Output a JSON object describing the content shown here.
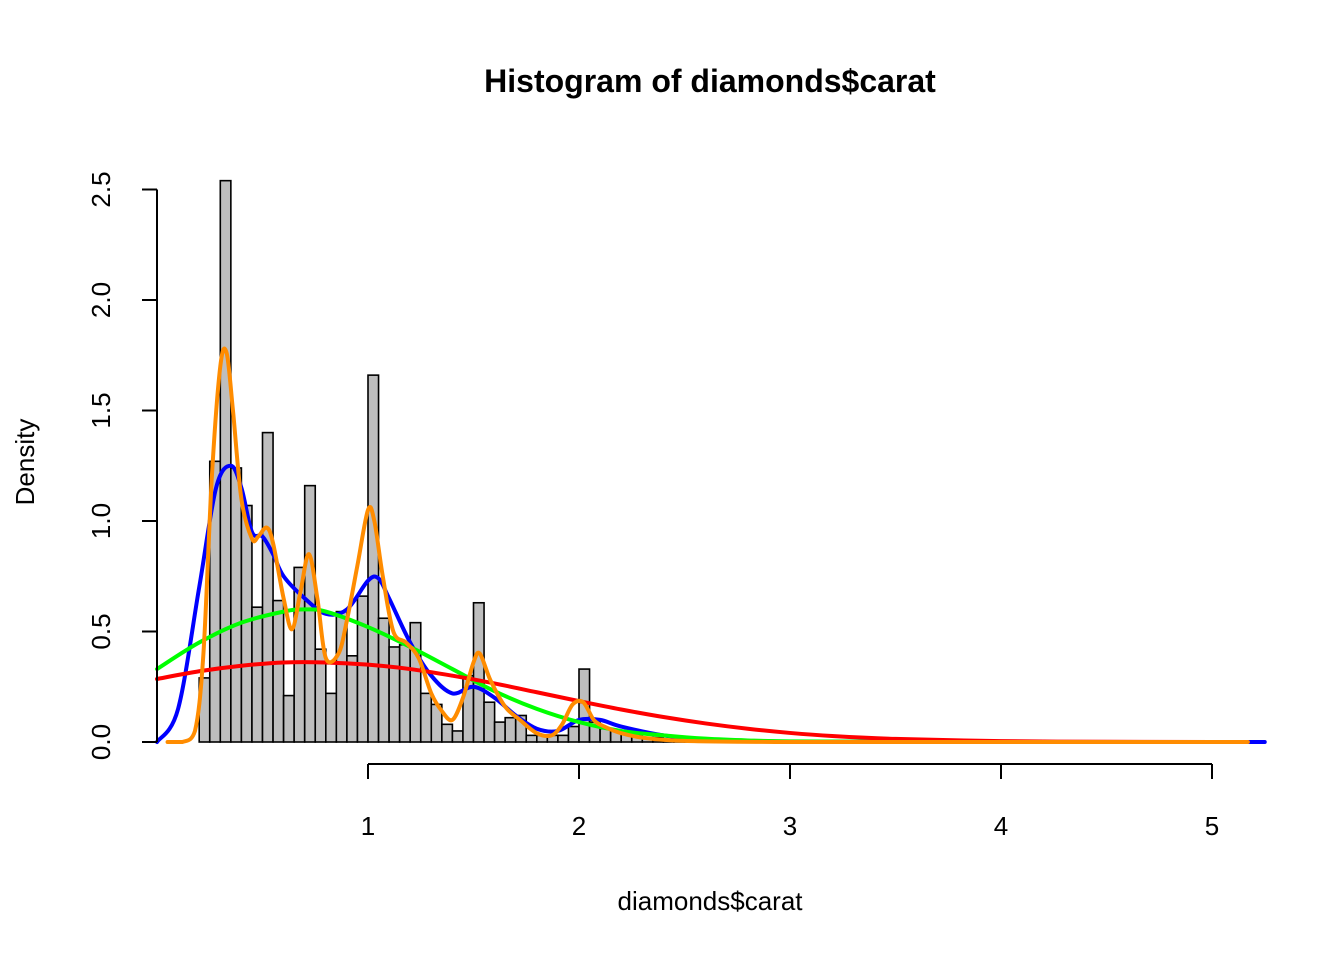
{
  "chart_data": {
    "type": "bar",
    "title": "Histogram of diamonds$carat",
    "xlabel": "diamonds$carat",
    "ylabel": "Density",
    "xlim": [
      0,
      5.25
    ],
    "ylim": [
      0,
      2.5
    ],
    "x_ticks": [
      1,
      2,
      3,
      4,
      5
    ],
    "y_ticks": [
      0.0,
      0.5,
      1.0,
      1.5,
      2.0,
      2.5
    ],
    "x_tick_labels": [
      "1",
      "2",
      "3",
      "4",
      "5"
    ],
    "y_tick_labels": [
      "0.0",
      "0.5",
      "1.0",
      "1.5",
      "2.0",
      "2.5"
    ],
    "grid": false,
    "bar_color": "#bebebe",
    "bin_width": 0.05,
    "bins_start": 0.2,
    "values": [
      0.29,
      1.27,
      2.54,
      1.24,
      1.07,
      0.61,
      1.4,
      0.64,
      0.21,
      0.79,
      1.16,
      0.42,
      0.22,
      0.59,
      0.39,
      0.66,
      1.66,
      0.56,
      0.43,
      0.44,
      0.54,
      0.22,
      0.17,
      0.08,
      0.05,
      0.3,
      0.63,
      0.18,
      0.09,
      0.11,
      0.12,
      0.03,
      0.03,
      0.03,
      0.03,
      0.07,
      0.33,
      0.09,
      0.06,
      0.05,
      0.04,
      0.03,
      0.02,
      0.02,
      0.01,
      0.01,
      0.01,
      0.005,
      0.005,
      0.004,
      0.003,
      0.002,
      0.002,
      0.002,
      0.002
    ],
    "series": [
      {
        "color": "#0000ff",
        "type": "line",
        "x": [
          0.0,
          0.1,
          0.2,
          0.28,
          0.35,
          0.4,
          0.45,
          0.5,
          0.55,
          0.6,
          0.7,
          0.8,
          0.9,
          1.0,
          1.05,
          1.1,
          1.2,
          1.3,
          1.4,
          1.5,
          1.6,
          1.7,
          1.8,
          1.9,
          2.0,
          2.1,
          2.2,
          2.4,
          2.6,
          2.8,
          3.0,
          3.5,
          4.0,
          4.5,
          5.0,
          5.25
        ],
        "y": [
          0.0,
          0.15,
          0.7,
          1.15,
          1.25,
          1.15,
          0.95,
          0.93,
          0.85,
          0.75,
          0.65,
          0.58,
          0.6,
          0.73,
          0.74,
          0.65,
          0.45,
          0.3,
          0.22,
          0.25,
          0.2,
          0.12,
          0.06,
          0.05,
          0.1,
          0.1,
          0.07,
          0.03,
          0.01,
          0.005,
          0.002,
          0.001,
          0.0,
          0.0,
          0.0,
          0.0
        ]
      },
      {
        "color": "#00ff00",
        "type": "line",
        "x": [
          0.0,
          0.2,
          0.4,
          0.6,
          0.7,
          0.8,
          1.0,
          1.2,
          1.4,
          1.6,
          1.8,
          2.0,
          2.2,
          2.4,
          2.6,
          2.8,
          3.0,
          3.5,
          4.0,
          5.0
        ],
        "y": [
          0.33,
          0.45,
          0.54,
          0.59,
          0.6,
          0.59,
          0.52,
          0.43,
          0.33,
          0.23,
          0.15,
          0.09,
          0.05,
          0.03,
          0.015,
          0.007,
          0.003,
          0.001,
          0.0,
          0.0
        ]
      },
      {
        "color": "#ff0000",
        "type": "line",
        "x": [
          0.0,
          0.2,
          0.4,
          0.6,
          0.8,
          1.0,
          1.2,
          1.4,
          1.6,
          1.8,
          2.0,
          2.2,
          2.4,
          2.6,
          2.8,
          3.0,
          3.2,
          3.5,
          4.0,
          4.5,
          5.0
        ],
        "y": [
          0.285,
          0.32,
          0.345,
          0.36,
          0.36,
          0.35,
          0.33,
          0.3,
          0.265,
          0.225,
          0.185,
          0.147,
          0.113,
          0.084,
          0.06,
          0.041,
          0.027,
          0.014,
          0.004,
          0.001,
          0.0
        ]
      },
      {
        "color": "#ff8c00",
        "type": "line",
        "x": [
          0.05,
          0.12,
          0.18,
          0.22,
          0.26,
          0.3,
          0.33,
          0.36,
          0.4,
          0.45,
          0.48,
          0.52,
          0.55,
          0.6,
          0.64,
          0.68,
          0.72,
          0.76,
          0.8,
          0.86,
          0.9,
          0.95,
          1.0,
          1.03,
          1.07,
          1.12,
          1.18,
          1.24,
          1.3,
          1.35,
          1.4,
          1.45,
          1.5,
          1.53,
          1.58,
          1.65,
          1.72,
          1.8,
          1.87,
          1.92,
          1.97,
          2.02,
          2.07,
          2.12,
          2.2,
          2.3,
          2.5,
          3.0,
          4.0,
          5.17
        ],
        "y": [
          0.0,
          0.0,
          0.05,
          0.4,
          1.2,
          1.7,
          1.76,
          1.5,
          1.1,
          0.92,
          0.93,
          0.97,
          0.9,
          0.65,
          0.51,
          0.68,
          0.85,
          0.65,
          0.38,
          0.4,
          0.55,
          0.8,
          1.05,
          1.0,
          0.75,
          0.5,
          0.45,
          0.38,
          0.22,
          0.14,
          0.1,
          0.2,
          0.36,
          0.4,
          0.28,
          0.16,
          0.1,
          0.04,
          0.03,
          0.08,
          0.17,
          0.18,
          0.1,
          0.07,
          0.04,
          0.02,
          0.005,
          0.0,
          0.0,
          0.0
        ]
      }
    ]
  }
}
